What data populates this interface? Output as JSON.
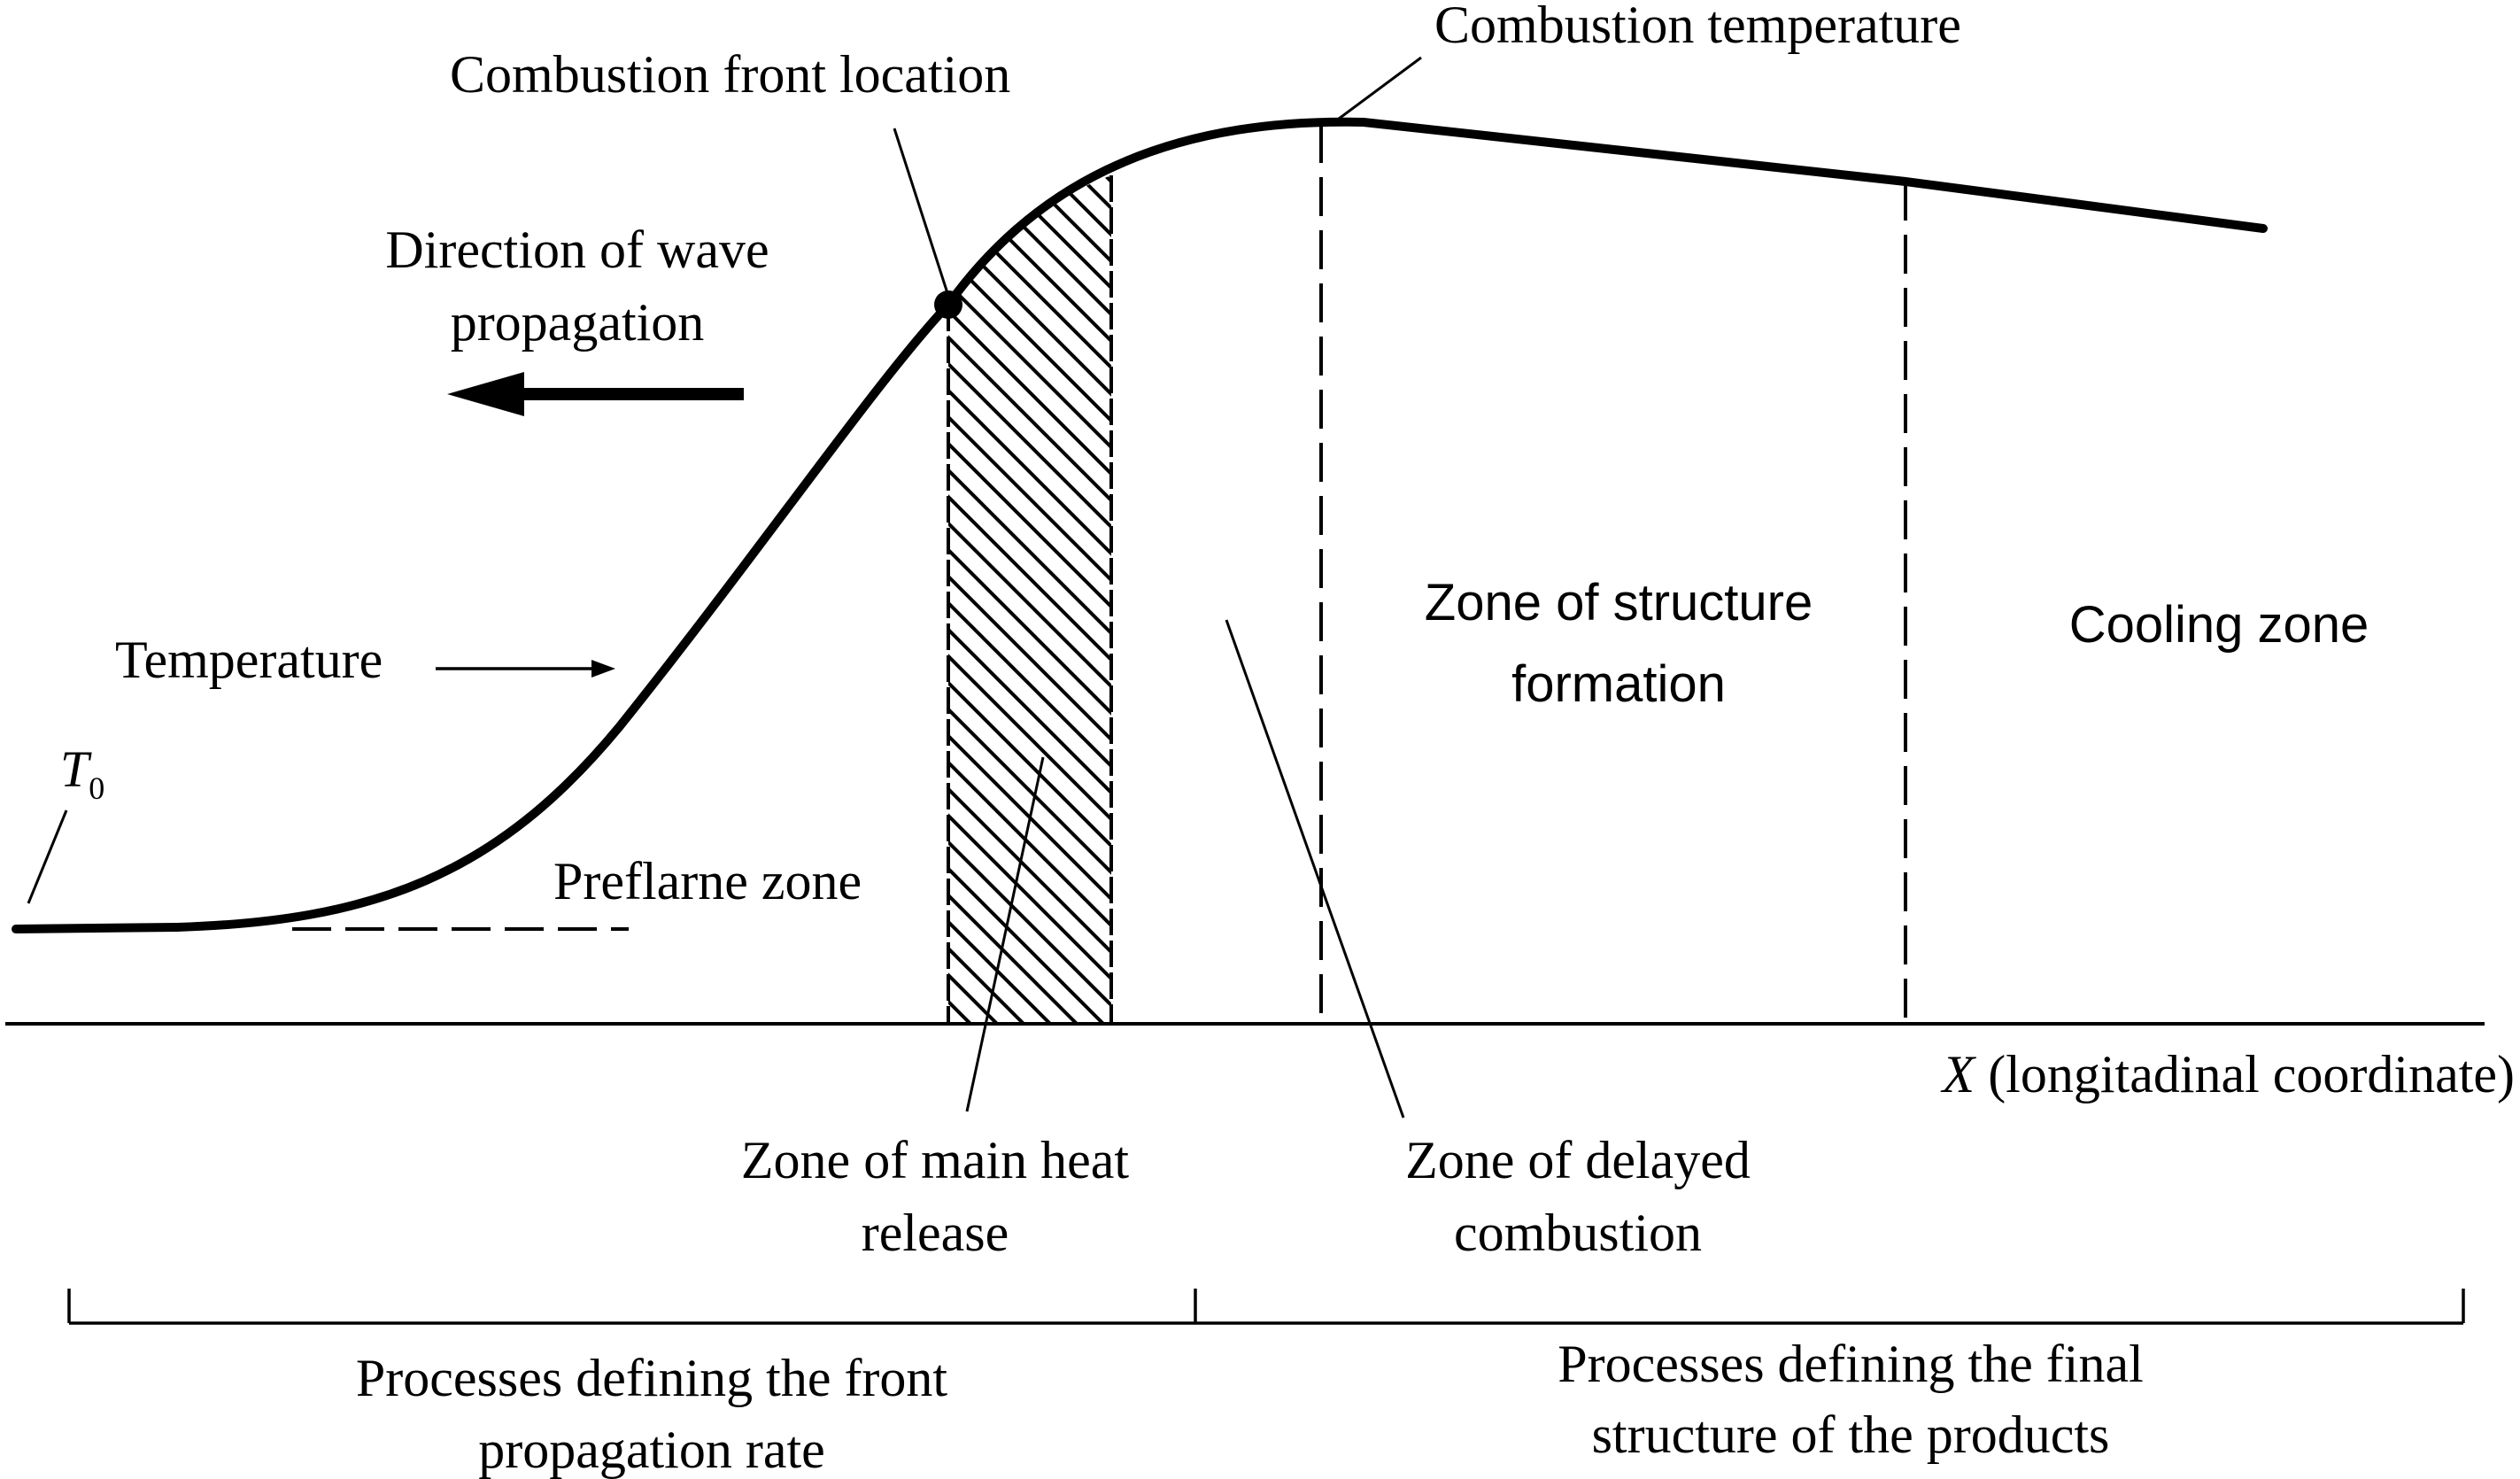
{
  "labels": {
    "combustion_temperature": "Combustion temperature",
    "combustion_front_location": "Combustion front location",
    "direction_line1": "Direction of wave",
    "direction_line2": "propagation",
    "temperature": "Temperature",
    "t0_symbol": "T",
    "t0_subscript": "0",
    "preflame_zone": "Preflarne zone",
    "zone_structure_line1": "Zone of structure",
    "zone_structure_line2": "formation",
    "cooling_zone": "Cooling zone",
    "x_axis_symbol": "X",
    "x_axis_text": " (longitadinal coordinate)",
    "zone_main_heat_line1": "Zone of main heat",
    "zone_main_heat_line2": "release",
    "zone_delayed_line1": "Zone of delayed",
    "zone_delayed_line2": "combustion",
    "processes_front_line1": "Processes defining the front",
    "processes_front_line2": "propagation rate",
    "processes_final_line1": "Processes defining the final",
    "processes_final_line2": "structure of the products"
  }
}
